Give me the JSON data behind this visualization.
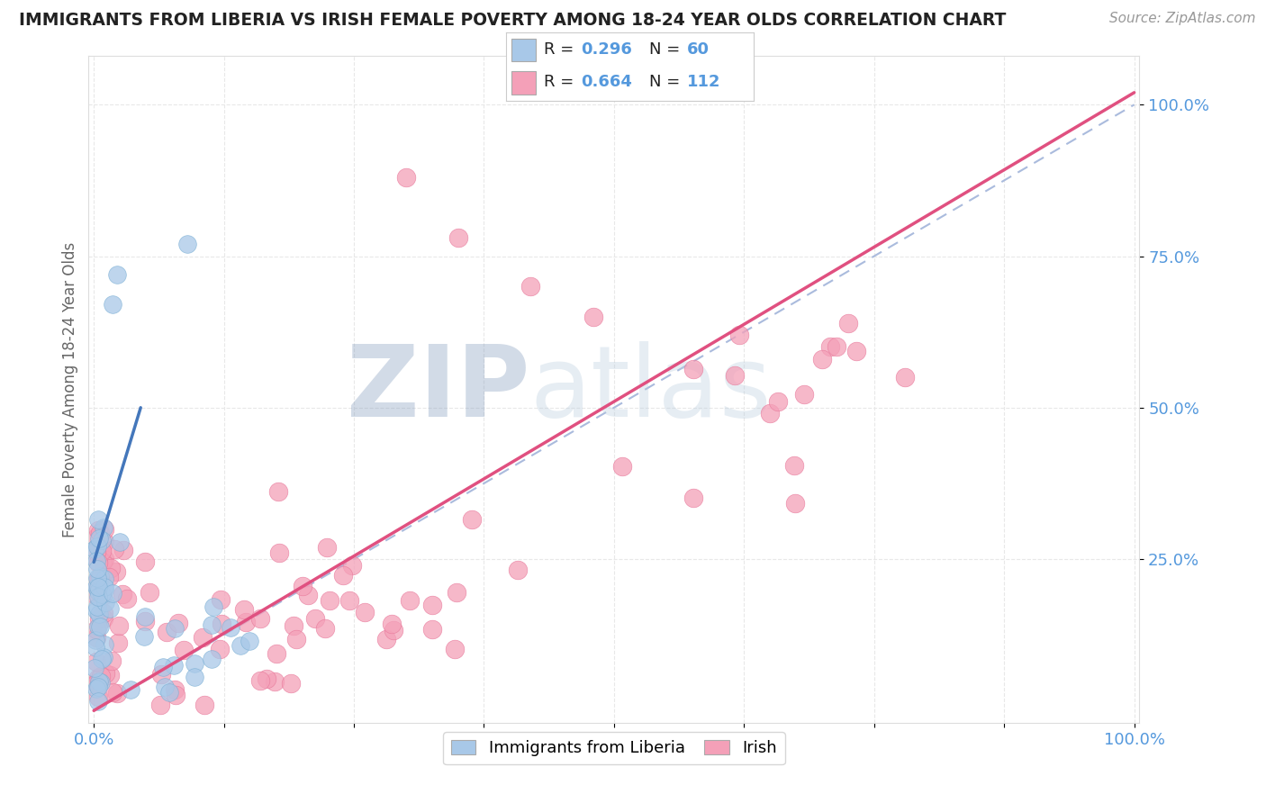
{
  "title": "IMMIGRANTS FROM LIBERIA VS IRISH FEMALE POVERTY AMONG 18-24 YEAR OLDS CORRELATION CHART",
  "source": "Source: ZipAtlas.com",
  "ylabel": "Female Poverty Among 18-24 Year Olds",
  "blue_R": 0.296,
  "blue_N": 60,
  "pink_R": 0.664,
  "pink_N": 112,
  "blue_color": "#a8c8e8",
  "pink_color": "#f4a0b8",
  "blue_edge_color": "#7bafd4",
  "pink_edge_color": "#e8789a",
  "blue_line_color": "#4477bb",
  "pink_line_color": "#e05080",
  "blue_dash_color": "#aabbdd",
  "watermark_zip": "ZIP",
  "watermark_atlas": "atlas",
  "watermark_color": "#d8e4f0",
  "background_color": "#ffffff",
  "tick_color": "#5599dd",
  "title_color": "#222222",
  "source_color": "#999999",
  "grid_color": "#e8e8e8",
  "ylabel_color": "#666666"
}
